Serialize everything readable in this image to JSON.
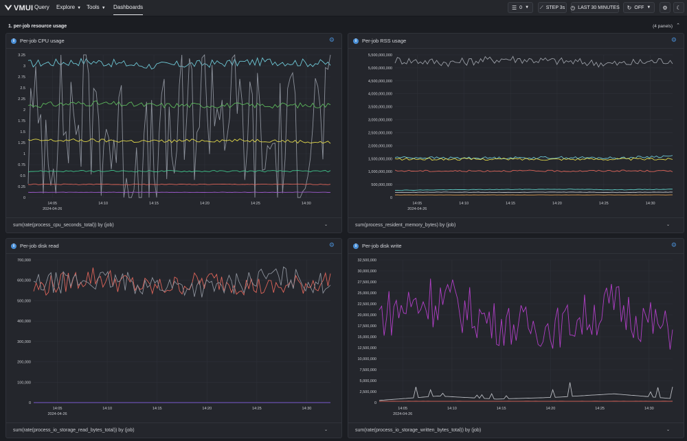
{
  "app": {
    "name": "VMUI"
  },
  "nav": {
    "query": "Query",
    "explore": "Explore",
    "tools": "Tools",
    "dashboards": "Dashboards"
  },
  "controls": {
    "tenant": "0",
    "step": "STEP 3s",
    "range": "LAST 30 MINUTES",
    "refresh": "OFF"
  },
  "section": {
    "title": "1. per-job resource usage",
    "count": "(4 panels)"
  },
  "panels": [
    {
      "title": "Per-job CPU usage",
      "query": "sum(rate(process_cpu_seconds_total)) by (job)",
      "yticks": [
        "3.25",
        "3",
        "2.75",
        "2.5",
        "2.25",
        "2",
        "1.75",
        "1.5",
        "1.25",
        "1",
        "0.75",
        "0.5",
        "0.25",
        "0"
      ],
      "xticks": [
        "14:05",
        "14:10",
        "14:15",
        "14:20",
        "14:25",
        "14:30"
      ],
      "date": "2024-04-26"
    },
    {
      "title": "Per-job RSS usage",
      "query": "sum(process_resident_memory_bytes) by (job)",
      "yticks": [
        "5,500,000,000",
        "5,000,000,000",
        "4,500,000,000",
        "4,000,000,000",
        "3,500,000,000",
        "3,000,000,000",
        "2,500,000,000",
        "2,000,000,000",
        "1,500,000,000",
        "1,000,000,000",
        "500,000,000",
        "0"
      ],
      "xticks": [
        "14:05",
        "14:10",
        "14:15",
        "14:20",
        "14:25",
        "14:30"
      ],
      "date": "2024-04-26"
    },
    {
      "title": "Per-job disk read",
      "query": "sum(rate(process_io_storage_read_bytes_total)) by (job)",
      "yticks": [
        "700,000",
        "600,000",
        "500,000",
        "400,000",
        "300,000",
        "200,000",
        "100,000",
        "0"
      ],
      "xticks": [
        "14:05",
        "14:10",
        "14:15",
        "14:20",
        "14:25",
        "14:30"
      ],
      "date": "2024-04-26"
    },
    {
      "title": "Per-job disk write",
      "query": "sum(rate(process_io_storage_written_bytes_total)) by (job)",
      "yticks": [
        "32,500,000",
        "30,000,000",
        "27,500,000",
        "25,000,000",
        "22,500,000",
        "20,000,000",
        "17,500,000",
        "15,000,000",
        "12,500,000",
        "10,000,000",
        "7,500,000",
        "5,000,000",
        "2,500,000",
        "0"
      ],
      "xticks": [
        "14:05",
        "14:10",
        "14:15",
        "14:20",
        "14:25",
        "14:30"
      ],
      "date": "2024-04-26"
    }
  ],
  "chart_data": [
    {
      "type": "line",
      "x": [
        "14:05",
        "14:10",
        "14:15",
        "14:20",
        "14:25",
        "14:30"
      ],
      "ylim": [
        0,
        3.25
      ],
      "series": [
        {
          "color": "#6ec8d6",
          "values": [
            3.05,
            3.1,
            3.0,
            3.05,
            3.1,
            3.05
          ]
        },
        {
          "color": "#8d929c",
          "values": [
            1.5,
            2.0,
            0.5,
            2.5,
            1.0,
            2.0
          ]
        },
        {
          "color": "#5cb85c",
          "values": [
            2.1,
            2.15,
            2.1,
            2.1,
            2.1,
            2.1
          ]
        },
        {
          "color": "#e2d94a",
          "values": [
            1.3,
            1.3,
            1.28,
            1.3,
            1.3,
            1.25
          ]
        },
        {
          "color": "#3fc28a",
          "values": [
            0.6,
            0.6,
            0.6,
            0.6,
            0.6,
            0.6
          ]
        },
        {
          "color": "#e0655a",
          "values": [
            0.3,
            0.3,
            0.3,
            0.3,
            0.3,
            0.3
          ]
        },
        {
          "color": "#a05bd0",
          "values": [
            0.12,
            0.12,
            0.12,
            0.12,
            0.12,
            0.12
          ]
        }
      ]
    },
    {
      "type": "line",
      "x": [
        "14:05",
        "14:10",
        "14:15",
        "14:20",
        "14:25",
        "14:30"
      ],
      "ylim": [
        0,
        5500000000
      ],
      "series": [
        {
          "color": "#9a9ea6",
          "values": [
            5300000000,
            5200000000,
            5350000000,
            5250000000,
            5150000000,
            5300000000
          ]
        },
        {
          "color": "#6ec8d6",
          "values": [
            1550000000,
            1520000000,
            1530000000,
            1540000000,
            1520000000,
            1600000000
          ]
        },
        {
          "color": "#e2d94a",
          "values": [
            1480000000,
            1480000000,
            1480000000,
            1480000000,
            1480000000,
            1480000000
          ]
        },
        {
          "color": "#e0655a",
          "values": [
            1030000000,
            1020000000,
            1030000000,
            1020000000,
            1030000000,
            1020000000
          ]
        },
        {
          "color": "#5fd0c8",
          "values": [
            280000000,
            300000000,
            310000000,
            320000000,
            300000000,
            320000000
          ]
        },
        {
          "color": "#c0c3c9",
          "values": [
            200000000,
            210000000,
            200000000,
            210000000,
            200000000,
            210000000
          ]
        },
        {
          "color": "#e0a050",
          "values": [
            100000000,
            100000000,
            100000000,
            100000000,
            100000000,
            100000000
          ]
        }
      ]
    },
    {
      "type": "line",
      "x": [
        "14:05",
        "14:10",
        "14:15",
        "14:20",
        "14:25",
        "14:30"
      ],
      "ylim": [
        0,
        700000
      ],
      "series": [
        {
          "color": "#e0655a",
          "values": [
            560000,
            620000,
            560000,
            600000,
            560000,
            600000
          ]
        },
        {
          "color": "#8d929c",
          "values": [
            580000,
            600000,
            580000,
            560000,
            620000,
            580000
          ]
        },
        {
          "color": "#7a5bd0",
          "values": [
            0,
            0,
            0,
            0,
            0,
            0
          ]
        }
      ]
    },
    {
      "type": "line",
      "x": [
        "14:05",
        "14:10",
        "14:15",
        "14:20",
        "14:25",
        "14:30"
      ],
      "ylim": [
        0,
        32500000
      ],
      "series": [
        {
          "color": "#b23fc8",
          "values": [
            20000000,
            24000000,
            18000000,
            17000000,
            22000000,
            16000000
          ]
        },
        {
          "color": "#b9bcc2",
          "values": [
            500000,
            1500000,
            800000,
            1200000,
            2000000,
            900000
          ]
        },
        {
          "color": "#e0655a",
          "values": [
            300000,
            300000,
            300000,
            300000,
            300000,
            300000
          ]
        }
      ]
    }
  ]
}
